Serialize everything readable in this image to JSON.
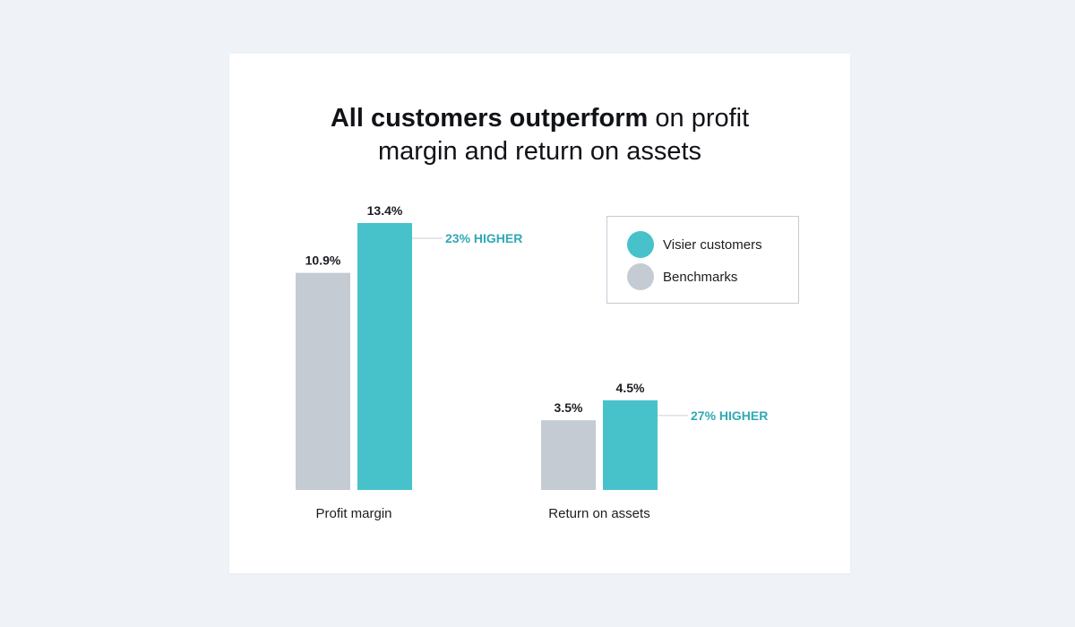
{
  "title": {
    "bold_part": "All customers outperform",
    "normal_part_1": " on profit",
    "line_2": "margin and return on assets"
  },
  "colors": {
    "visier": "#47c2cb",
    "benchmark": "#c4cbd3",
    "annotation": "#31a8b6",
    "text": "#1b1d22",
    "connector": "#c9cfd5"
  },
  "legend": {
    "items": [
      {
        "label": "Visier customers",
        "color": "#47c2cb"
      },
      {
        "label": "Benchmarks",
        "color": "#c4cbd3"
      }
    ]
  },
  "chart_data": {
    "type": "bar",
    "categories": [
      "Profit margin",
      "Return on assets"
    ],
    "series": [
      {
        "name": "Benchmarks",
        "values": [
          10.9,
          3.5
        ],
        "labels": [
          "10.9%",
          "3.5%"
        ]
      },
      {
        "name": "Visier customers",
        "values": [
          13.4,
          4.5
        ],
        "labels": [
          "13.4%",
          "4.5%"
        ]
      }
    ],
    "annotations": [
      "23% HIGHER",
      "27% HIGHER"
    ],
    "title": "All customers outperform on profit margin and return on assets",
    "xlabel": "",
    "ylabel": "",
    "ylim": [
      0,
      13.4
    ],
    "grid": false,
    "legend_position": "top-right"
  }
}
